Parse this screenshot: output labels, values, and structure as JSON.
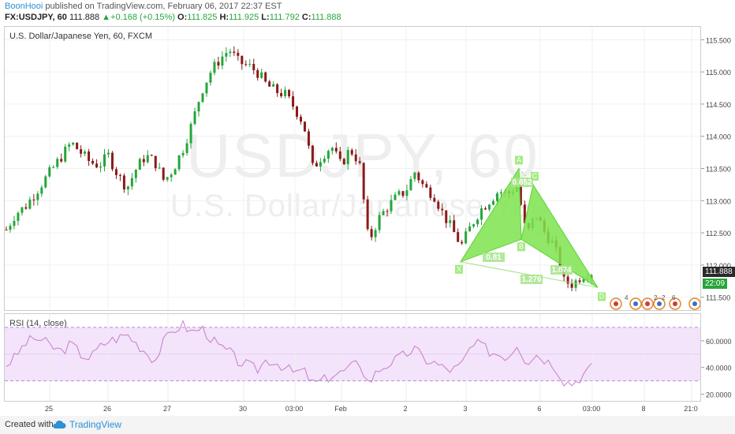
{
  "header": {
    "author": "BoonHooi",
    "published_text": "published on TradingView.com, February 06, 2017 22:37 EST",
    "symbol": "FX:USDJPY, 60",
    "last": "111.888",
    "change": "+0.168 (+0.15%)",
    "open_label": "O:",
    "open": "111.825",
    "high_label": "H:",
    "high": "111.925",
    "low_label": "L:",
    "low": "111.792",
    "close_label": "C:",
    "close": "111.888"
  },
  "main_chart": {
    "title": "U.S. Dollar/Japanese Yen, 60, FXCM",
    "watermark_symbol": "USDJPY, 60",
    "watermark_name": "U.S. Dollar/Japanese Yen",
    "price_ticks": [
      "115.500",
      "115.000",
      "114.500",
      "114.000",
      "113.500",
      "113.000",
      "112.500",
      "112.000",
      "111.500"
    ],
    "last_price_tag": "111.888",
    "countdown_tag": "22:09",
    "pattern_points": [
      "X",
      "A",
      "B",
      "C",
      "D"
    ],
    "pattern_ratios": [
      "0.81",
      "0.652",
      "1.874",
      "1.276"
    ],
    "event_counts": [
      "4",
      "2",
      "2",
      "6"
    ]
  },
  "rsi_panel": {
    "title": "RSI (14, close)",
    "ticks": [
      "60.0000",
      "40.0000",
      "20.0000"
    ]
  },
  "time_axis": {
    "labels": [
      "25",
      "26",
      "27",
      "30",
      "03:00",
      "Feb",
      "2",
      "3",
      "6",
      "03:00",
      "8",
      "21:0"
    ]
  },
  "footer": {
    "made_with": "Created with",
    "brand": "TradingView"
  },
  "colors": {
    "up_candle": "#26a53b",
    "down_candle": "#8b1a1a",
    "pattern_fill": "#7ee34d",
    "rsi_line": "#c77dc7",
    "rsi_band": "#f3e3fb",
    "accent": "#2d8fd5"
  },
  "chart_data": {
    "type": "candlestick",
    "symbol": "USDJPY",
    "interval": "60",
    "ylim": [
      111.3,
      115.7
    ],
    "close_path": [
      112.55,
      112.8,
      112.9,
      113.1,
      113.3,
      113.5,
      113.7,
      113.9,
      113.75,
      113.6,
      113.55,
      113.7,
      113.4,
      113.2,
      113.5,
      113.7,
      113.6,
      113.3,
      113.5,
      113.8,
      114.2,
      114.7,
      115.0,
      115.2,
      115.35,
      115.15,
      115.1,
      115.0,
      114.8,
      114.7,
      114.65,
      114.45,
      114.2,
      113.5,
      113.7,
      113.85,
      113.55,
      113.8,
      113.6,
      112.35,
      112.7,
      112.9,
      113.05,
      113.15,
      113.45,
      113.2,
      113.1,
      112.8,
      112.55,
      112.3,
      112.6,
      112.85,
      113.0,
      113.15,
      113.1,
      113.25,
      112.45,
      112.8,
      112.5,
      112.3,
      111.75,
      111.7,
      111.85,
      111.888
    ],
    "pattern": {
      "name": "harmonic",
      "points": [
        {
          "label": "X",
          "price": 112.05
        },
        {
          "label": "A",
          "price": 113.5
        },
        {
          "label": "B",
          "price": 112.4
        },
        {
          "label": "C",
          "price": 113.25
        },
        {
          "label": "D",
          "price": 111.65
        }
      ],
      "ratios": {
        "XB": 0.81,
        "AC": 0.652,
        "BD": 1.874,
        "XD": 1.276
      }
    },
    "rsi": {
      "period": 14,
      "ylim": [
        15,
        80
      ],
      "bands": [
        70,
        30
      ],
      "values": [
        42,
        48,
        58,
        62,
        60,
        55,
        52,
        58,
        50,
        47,
        55,
        60,
        62,
        65,
        58,
        52,
        45,
        60,
        68,
        72,
        66,
        70,
        62,
        55,
        52,
        44,
        42,
        38,
        46,
        44,
        40,
        36,
        38,
        28,
        30,
        34,
        36,
        40,
        44,
        28,
        38,
        42,
        46,
        50,
        54,
        46,
        44,
        40,
        38,
        42,
        55,
        58,
        52,
        50,
        48,
        58,
        44,
        50,
        46,
        42,
        30,
        28,
        34,
        40
      ]
    }
  }
}
